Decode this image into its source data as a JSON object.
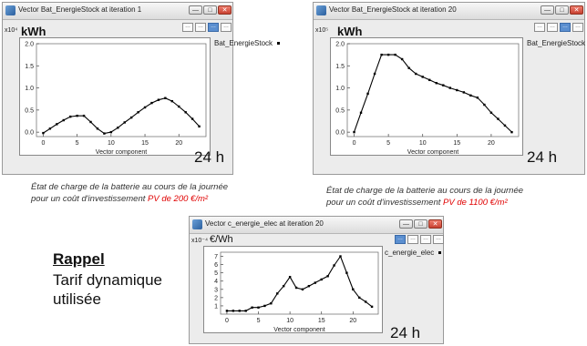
{
  "windows": [
    {
      "title": "Vector Bat_EnergieStock at iteration 1",
      "exponent": "x10⁴",
      "unit": "kWh",
      "legend": "Bat_EnergieStock",
      "duration_label": "24 h",
      "active_toolbar": 2
    },
    {
      "title": "Vector Bat_EnergieStock at iteration 20",
      "exponent": "x10⁵",
      "unit": "kWh",
      "legend": "Bat_EnergieStock",
      "duration_label": "24 h",
      "active_toolbar": 2
    },
    {
      "title": "Vector c_energie_elec at iteration 20",
      "exponent": "x10⁻⁴",
      "unit": "€/Wh",
      "legend": "c_energie_elec",
      "duration_label": "24 h",
      "active_toolbar": 0
    }
  ],
  "window_buttons": {
    "minimize": "—",
    "maximize": "□",
    "close": "✕"
  },
  "toolbar_icons": [
    "zoom-icon",
    "pan-icon",
    "select-icon",
    "export-icon"
  ],
  "captions": {
    "left": {
      "line1": "État de charge de la batterie au cours de la journée",
      "line2_prefix": "pour un coût d'investissement ",
      "line2_highlight": "PV de 200 €/m²"
    },
    "right": {
      "line1": "État de charge de la batterie au cours de la journée",
      "line2_prefix": "pour un coût d'investissement ",
      "line2_highlight": "PV de 1100 €/m²"
    }
  },
  "rappel": {
    "title": "Rappel",
    "line1": "Tarif dynamique",
    "line2": "utilisée"
  },
  "colors": {
    "accent_red": "#e00000",
    "active_toolbar": "#5b8fd0",
    "line": "#000000"
  },
  "chart_data": [
    {
      "type": "line",
      "title": "",
      "xlabel": "Vector component",
      "ylabel": "",
      "xlim": [
        -1,
        24
      ],
      "ylim": [
        -0.1,
        2.0
      ],
      "x_ticks": [
        0,
        5,
        10,
        15,
        20
      ],
      "y_ticks": [
        0.0,
        0.5,
        1.0,
        1.5,
        2.0
      ],
      "y_tick_labels": [
        "0.0",
        "0.5",
        "1.0",
        "1.5",
        "2.0"
      ],
      "grid": false,
      "legend_position": "top-right",
      "series": [
        {
          "name": "Bat_EnergieStock",
          "x": [
            0,
            1,
            2,
            3,
            4,
            5,
            6,
            7,
            8,
            9,
            10,
            11,
            12,
            13,
            14,
            15,
            16,
            17,
            18,
            19,
            20,
            21,
            22,
            23
          ],
          "y": [
            -0.02,
            0.08,
            0.18,
            0.27,
            0.35,
            0.37,
            0.37,
            0.23,
            0.08,
            -0.03,
            0.0,
            0.1,
            0.22,
            0.33,
            0.45,
            0.56,
            0.66,
            0.73,
            0.77,
            0.7,
            0.58,
            0.45,
            0.3,
            0.13
          ]
        }
      ]
    },
    {
      "type": "line",
      "title": "",
      "xlabel": "Vector component",
      "ylabel": "",
      "xlim": [
        -1,
        24
      ],
      "ylim": [
        -0.1,
        2.0
      ],
      "x_ticks": [
        0,
        5,
        10,
        15,
        20
      ],
      "y_ticks": [
        0.0,
        0.5,
        1.0,
        1.5,
        2.0
      ],
      "y_tick_labels": [
        "0.0",
        "0.5",
        "1.0",
        "1.5",
        "2.0"
      ],
      "grid": false,
      "legend_position": "top-right",
      "series": [
        {
          "name": "Bat_EnergieStock",
          "x": [
            0,
            1,
            2,
            3,
            4,
            5,
            6,
            7,
            8,
            9,
            10,
            11,
            12,
            13,
            14,
            15,
            16,
            17,
            18,
            19,
            20,
            21,
            22,
            23
          ],
          "y": [
            0.0,
            0.44,
            0.87,
            1.32,
            1.75,
            1.75,
            1.75,
            1.65,
            1.45,
            1.32,
            1.25,
            1.18,
            1.11,
            1.06,
            1.0,
            0.95,
            0.9,
            0.83,
            0.78,
            0.62,
            0.44,
            0.3,
            0.15,
            0.0
          ]
        }
      ]
    },
    {
      "type": "line",
      "title": "",
      "xlabel": "Vector component",
      "ylabel": "",
      "xlim": [
        -1,
        24
      ],
      "ylim": [
        0,
        7.5
      ],
      "x_ticks": [
        0,
        5,
        10,
        15,
        20
      ],
      "y_ticks": [
        1,
        2,
        3,
        4,
        5,
        6,
        7
      ],
      "y_tick_labels": [
        "1",
        "2",
        "3",
        "4",
        "5",
        "6",
        "7"
      ],
      "grid": false,
      "legend_position": "top-right",
      "series": [
        {
          "name": "c_energie_elec",
          "x": [
            0,
            1,
            2,
            3,
            4,
            5,
            6,
            7,
            8,
            9,
            10,
            11,
            12,
            13,
            14,
            15,
            16,
            17,
            18,
            19,
            20,
            21,
            22,
            23
          ],
          "y": [
            0.4,
            0.4,
            0.4,
            0.4,
            0.8,
            0.8,
            1.0,
            1.3,
            2.5,
            3.4,
            4.5,
            3.2,
            3.0,
            3.4,
            3.8,
            4.2,
            4.6,
            5.9,
            7.0,
            5.0,
            3.0,
            2.0,
            1.5,
            0.9
          ]
        }
      ]
    }
  ]
}
